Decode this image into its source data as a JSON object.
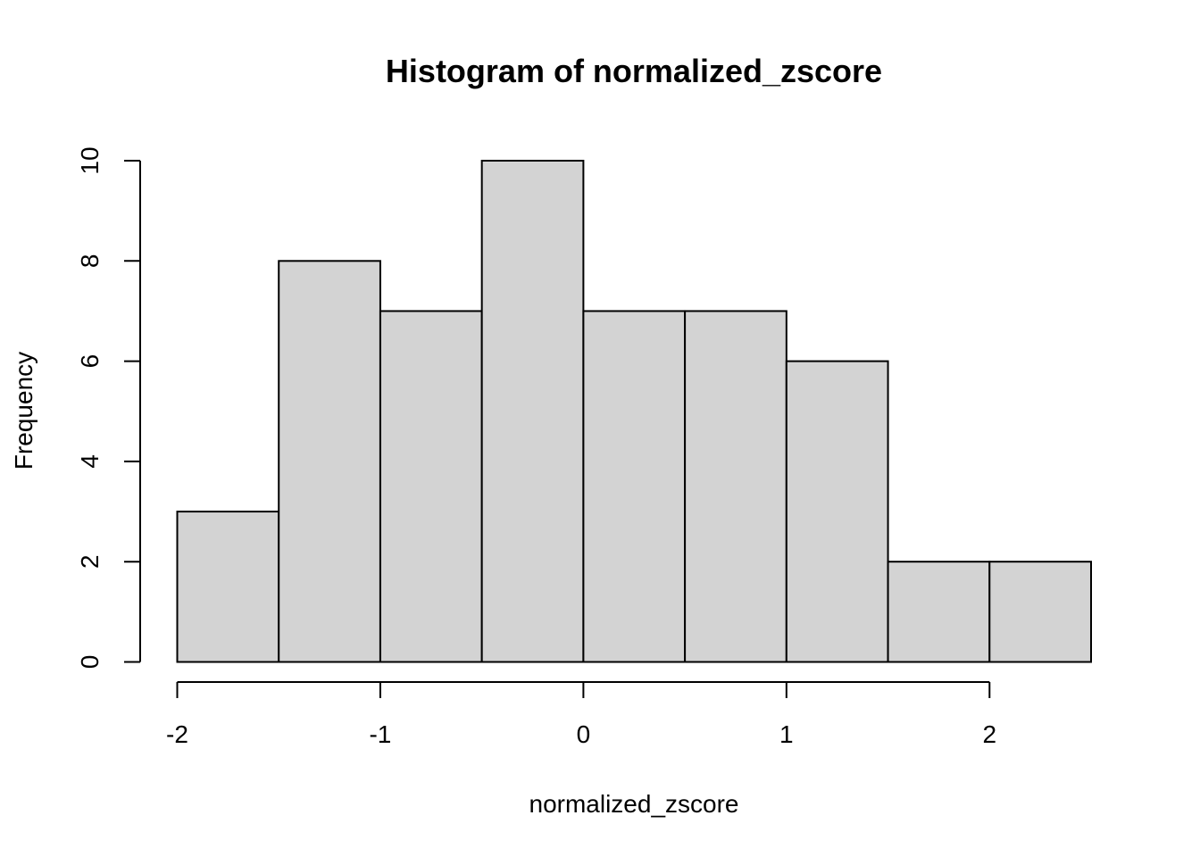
{
  "chart_data": {
    "type": "bar",
    "subtype": "histogram",
    "title": "Histogram of normalized_zscore",
    "xlabel": "normalized_zscore",
    "ylabel": "Frequency",
    "bins": [
      {
        "from": -2.0,
        "to": -1.5,
        "count": 3
      },
      {
        "from": -1.5,
        "to": -1.0,
        "count": 8
      },
      {
        "from": -1.0,
        "to": -0.5,
        "count": 7
      },
      {
        "from": -0.5,
        "to": 0.0,
        "count": 10
      },
      {
        "from": 0.0,
        "to": 0.5,
        "count": 7
      },
      {
        "from": 0.5,
        "to": 1.0,
        "count": 7
      },
      {
        "from": 1.0,
        "to": 1.5,
        "count": 6
      },
      {
        "from": 1.5,
        "to": 2.0,
        "count": 2
      },
      {
        "from": 2.0,
        "to": 2.5,
        "count": 2
      }
    ],
    "xlim": [
      -2.0,
      2.5
    ],
    "ylim": [
      0,
      10
    ],
    "x_ticks": [
      -2,
      -1,
      0,
      1,
      2
    ],
    "x_tick_labels": [
      "-2",
      "-1",
      "0",
      "1",
      "2"
    ],
    "y_ticks": [
      0,
      2,
      4,
      6,
      8,
      10
    ],
    "y_tick_labels": [
      "0",
      "2",
      "4",
      "6",
      "8",
      "10"
    ],
    "bar_fill": "#d3d3d3",
    "bar_stroke": "#000000",
    "grid": false,
    "legend": "none"
  }
}
